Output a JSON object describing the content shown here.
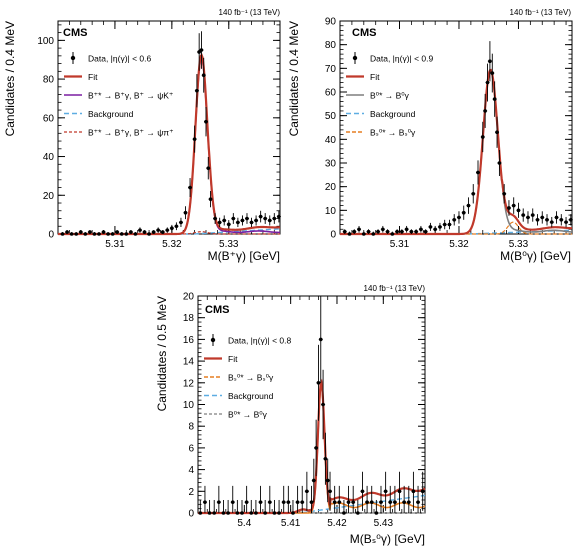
{
  "colors": {
    "fit": "#c0392b",
    "signal": "#7b1fa2",
    "background": "#5dade2",
    "component": "#e67e22",
    "muted": "#7f7f7f",
    "data": "#000000",
    "frame": "#000000"
  },
  "chart_data": [
    {
      "type": "line",
      "experiment": "CMS",
      "lumi": "140 fb⁻¹ (13 TeV)",
      "xlabel": "M(B⁺γ) [GeV]",
      "ylabel": "Candidates / 0.4 MeV",
      "xlim": [
        5.3,
        5.339
      ],
      "ylim": [
        0,
        110
      ],
      "xticks": [
        5.31,
        5.32,
        5.33
      ],
      "xtick_labels": [
        "5.31",
        "5.32",
        "5.33"
      ],
      "yticks": [
        0,
        20,
        40,
        60,
        80,
        100
      ],
      "ytick_labels": [
        "0",
        "20",
        "40",
        "60",
        "80",
        "100"
      ],
      "legend": [
        {
          "label": "Data, |η(γ)| < 0.6",
          "style": "data"
        },
        {
          "label": "Fit",
          "style": "fit"
        },
        {
          "label": "B⁺* → B⁺γ, B⁺ → ψK⁺",
          "style": "signal"
        },
        {
          "label": "Background",
          "style": "background"
        },
        {
          "label": "B⁺* → B⁺γ, B⁺ → ψπ⁺",
          "style": "dashed_component"
        }
      ],
      "peak": {
        "mu": 5.3252,
        "sigma": 0.00105,
        "height": 91
      },
      "background": {
        "start": 5.3238,
        "slope": 175,
        "max": 5
      },
      "tail": {
        "start": 5.3265,
        "scale": 1.0
      },
      "component": {
        "mu": 5.3252,
        "sigma": 0.0011,
        "height": 1.2
      },
      "points": {
        "x": [
          5.3008,
          5.3016,
          5.3024,
          5.3032,
          5.304,
          5.3048,
          5.3056,
          5.3064,
          5.3072,
          5.308,
          5.3088,
          5.3096,
          5.3104,
          5.3112,
          5.312,
          5.3128,
          5.3136,
          5.3144,
          5.3152,
          5.316,
          5.3168,
          5.3176,
          5.3184,
          5.3192,
          5.32,
          5.3208,
          5.3216,
          5.3224,
          5.3232,
          5.324,
          5.3244,
          5.3248,
          5.3252,
          5.3256,
          5.326,
          5.3264,
          5.3268,
          5.3276,
          5.3284,
          5.3292,
          5.33,
          5.3308,
          5.3316,
          5.3324,
          5.3332,
          5.334,
          5.3348,
          5.3356,
          5.3364,
          5.3372,
          5.338,
          5.3388
        ],
        "y": [
          0,
          1,
          0,
          0,
          1,
          0,
          1,
          0,
          0,
          1,
          0,
          0,
          1,
          0,
          0,
          1,
          0,
          2,
          1,
          0,
          1,
          2,
          1,
          2,
          3,
          4,
          6,
          11,
          24,
          49,
          74,
          94,
          95,
          82,
          58,
          34,
          18,
          8,
          6,
          7,
          5,
          8,
          6,
          7,
          8,
          6,
          7,
          9,
          8,
          7,
          8,
          9
        ],
        "err": [
          1,
          1,
          1,
          1,
          1,
          1,
          1,
          1,
          1,
          1,
          1,
          1,
          1,
          1,
          1,
          1,
          1,
          1.4,
          1,
          1,
          1,
          1.4,
          1,
          1.4,
          1.7,
          2,
          2.4,
          3.3,
          4.9,
          7,
          8.6,
          9.7,
          9.7,
          9,
          7.6,
          5.8,
          4.2,
          2.8,
          2.4,
          2.6,
          2.2,
          2.8,
          2.4,
          2.6,
          2.8,
          2.4,
          2.6,
          3,
          2.8,
          2.6,
          2.8,
          3
        ]
      }
    },
    {
      "type": "line",
      "experiment": "CMS",
      "lumi": "140 fb⁻¹ (13 TeV)",
      "xlabel": "M(B⁰γ) [GeV]",
      "ylabel": "Candidates / 0.4 MeV",
      "xlim": [
        5.3,
        5.339
      ],
      "ylim": [
        0,
        90
      ],
      "xticks": [
        5.31,
        5.32,
        5.33
      ],
      "xtick_labels": [
        "5.31",
        "5.32",
        "5.33"
      ],
      "yticks": [
        0,
        10,
        20,
        30,
        40,
        50,
        60,
        70,
        80,
        90
      ],
      "ytick_labels": [
        "0",
        "10",
        "20",
        "30",
        "40",
        "50",
        "60",
        "70",
        "80",
        "90"
      ],
      "legend": [
        {
          "label": "Data, |η(γ)| < 0.9",
          "style": "data"
        },
        {
          "label": "Fit",
          "style": "fit"
        },
        {
          "label": "B⁰* → B⁰γ",
          "style": "muted"
        },
        {
          "label": "Background",
          "style": "background"
        },
        {
          "label": "Bₛ⁰* → Bₛ⁰γ",
          "style": "component"
        }
      ],
      "peak": {
        "mu": 5.3253,
        "sigma": 0.00125,
        "height": 69
      },
      "background": {
        "start": 5.3215,
        "slope": 90,
        "max": 3.5
      },
      "tail": {
        "start": 5.3272,
        "scale": 1.0
      },
      "component": {
        "mu": 5.3291,
        "sigma": 0.0009,
        "height": 5
      },
      "points": {
        "x": [
          5.3008,
          5.3016,
          5.3024,
          5.3032,
          5.304,
          5.3048,
          5.3056,
          5.3064,
          5.3072,
          5.308,
          5.3088,
          5.3096,
          5.3104,
          5.3112,
          5.312,
          5.3128,
          5.3136,
          5.3144,
          5.3152,
          5.316,
          5.3168,
          5.3176,
          5.3184,
          5.3192,
          5.32,
          5.3208,
          5.3216,
          5.3224,
          5.3232,
          5.324,
          5.3244,
          5.3248,
          5.3252,
          5.3256,
          5.326,
          5.3264,
          5.3268,
          5.3276,
          5.3284,
          5.3292,
          5.33,
          5.3308,
          5.3316,
          5.3324,
          5.3332,
          5.334,
          5.3348,
          5.3356,
          5.3364,
          5.3372,
          5.338,
          5.3388
        ],
        "y": [
          1,
          0,
          1,
          2,
          0,
          1,
          0,
          1,
          2,
          1,
          0,
          1,
          1,
          2,
          1,
          1,
          2,
          1,
          3,
          2,
          3,
          4,
          4,
          6,
          7,
          9,
          12,
          17,
          26,
          41,
          52,
          64,
          73,
          68,
          57,
          43,
          30,
          17,
          11,
          12,
          10,
          8,
          7,
          8,
          6,
          7,
          6,
          5,
          7,
          6,
          5,
          6
        ],
        "err": [
          1,
          1,
          1,
          1.4,
          1,
          1,
          1,
          1,
          1.4,
          1,
          1,
          1,
          1,
          1.4,
          1,
          1,
          1.4,
          1,
          1.7,
          1.4,
          1.7,
          2,
          2,
          2.4,
          2.6,
          3,
          3.5,
          4.1,
          5.1,
          6.4,
          7.2,
          8,
          8.5,
          8.2,
          7.5,
          6.6,
          5.5,
          4.1,
          3.3,
          3.5,
          3.2,
          2.8,
          2.6,
          2.8,
          2.4,
          2.6,
          2.4,
          2.2,
          2.6,
          2.4,
          2.2,
          2.4
        ]
      }
    },
    {
      "type": "line",
      "experiment": "CMS",
      "lumi": "140 fb⁻¹ (13 TeV)",
      "xlabel": "M(Bₛ⁰γ) [GeV]",
      "ylabel": "Candidates / 0.5 MeV",
      "xlim": [
        5.39,
        5.439
      ],
      "ylim": [
        0,
        20
      ],
      "xticks": [
        5.4,
        5.41,
        5.42,
        5.43
      ],
      "xtick_labels": [
        "5.4",
        "5.41",
        "5.42",
        "5.43"
      ],
      "yticks": [
        0,
        2,
        4,
        6,
        8,
        10,
        12,
        14,
        16,
        18,
        20
      ],
      "ytick_labels": [
        "0",
        "2",
        "4",
        "6",
        "8",
        "10",
        "12",
        "14",
        "16",
        "18",
        "20"
      ],
      "legend": [
        {
          "label": "Data, |η(γ)| < 0.8",
          "style": "data"
        },
        {
          "label": "Fit",
          "style": "fit"
        },
        {
          "label": "Bₛ⁰* → Bₛ⁰γ",
          "style": "component"
        },
        {
          "label": "Background",
          "style": "background"
        },
        {
          "label": "B⁰* → B⁰γ",
          "style": "dashed_muted"
        }
      ],
      "peak": {
        "mu": 5.4166,
        "sigma": 0.0007,
        "height": 11.8
      },
      "background": {
        "start": 5.412,
        "slope": 60,
        "max": 1.7
      },
      "tail": {
        "start": 5.4185,
        "scale": 0.6
      },
      "component": {
        "mu": 5.4125,
        "sigma": 0.001,
        "height": 0.3
      },
      "points": {
        "x": [
          5.3905,
          5.3915,
          5.3925,
          5.3935,
          5.3945,
          5.3955,
          5.3965,
          5.3975,
          5.3985,
          5.3995,
          5.4005,
          5.4015,
          5.4025,
          5.4035,
          5.4045,
          5.4055,
          5.4065,
          5.4075,
          5.4085,
          5.4095,
          5.4105,
          5.4115,
          5.4125,
          5.4135,
          5.4145,
          5.415,
          5.4155,
          5.416,
          5.4165,
          5.417,
          5.4175,
          5.418,
          5.4185,
          5.4195,
          5.4205,
          5.4215,
          5.4225,
          5.4235,
          5.4245,
          5.4255,
          5.4265,
          5.4275,
          5.4285,
          5.4295,
          5.4305,
          5.4315,
          5.4325,
          5.4335,
          5.4345,
          5.4355,
          5.4365,
          5.4375,
          5.4385
        ],
        "y": [
          0,
          1,
          0,
          0,
          1,
          0,
          0,
          1,
          0,
          0,
          1,
          0,
          0,
          1,
          0,
          1,
          0,
          0,
          1,
          1,
          0,
          1,
          1,
          2,
          1,
          3,
          6,
          12,
          16,
          10,
          5,
          3,
          2,
          1,
          1,
          0,
          1,
          1,
          0,
          2,
          1,
          1,
          0,
          1,
          2,
          1,
          1,
          2,
          1,
          1,
          2,
          1,
          2
        ],
        "err": [
          1.2,
          1.5,
          1.2,
          1.2,
          1.5,
          1.2,
          1.2,
          1.5,
          1.2,
          1.2,
          1.5,
          1.2,
          1.2,
          1.5,
          1.2,
          1.5,
          1.2,
          1.2,
          1.5,
          1.5,
          1.2,
          1.5,
          1.5,
          1.8,
          1.5,
          2,
          2.6,
          3.5,
          4,
          3.2,
          2.4,
          2,
          1.8,
          1.5,
          1.5,
          1.2,
          1.5,
          1.5,
          1.2,
          1.8,
          1.5,
          1.5,
          1.2,
          1.5,
          1.8,
          1.5,
          1.5,
          1.8,
          1.5,
          1.5,
          1.8,
          1.5,
          1.8
        ]
      }
    }
  ]
}
